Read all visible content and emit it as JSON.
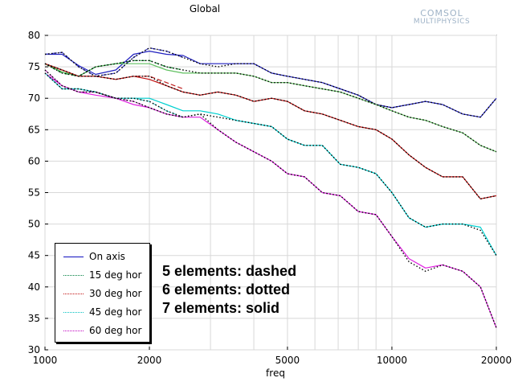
{
  "chart_data": {
    "type": "line",
    "title": "Global",
    "xlabel": "freq",
    "ylabel": "",
    "x_scale": "log",
    "xlim": [
      1000,
      20000
    ],
    "ylim": [
      30,
      80
    ],
    "x_ticks": [
      1000,
      2000,
      5000,
      10000,
      20000
    ],
    "y_ticks": [
      30,
      35,
      40,
      45,
      50,
      55,
      60,
      65,
      70,
      75,
      80
    ],
    "grid": true,
    "legend_position": "bottom-left",
    "legend": [
      {
        "label": "On axis",
        "color": "#1010c0"
      },
      {
        "label": "15 deg hor",
        "color": "#008040"
      },
      {
        "label": "30 deg hor",
        "color": "#c01010"
      },
      {
        "label": "45 deg hor",
        "color": "#00c0c0"
      },
      {
        "label": "60 deg hor",
        "color": "#c000c0"
      }
    ],
    "annotations": [
      "5 elements: dashed",
      "6 elements: dotted",
      "7 elements: solid"
    ],
    "series": [
      {
        "name": "On axis",
        "element_group": "5 elements: dashed",
        "color": "#4040d0",
        "style": "dashed",
        "x": [
          1000,
          1120,
          1250,
          1400,
          1600,
          1800,
          2000,
          2240,
          2500
        ],
        "y": [
          77.0,
          77.3,
          75.0,
          73.5,
          74.0,
          76.5,
          78.0,
          77.5,
          76.5
        ]
      },
      {
        "name": "On axis",
        "element_group": "6 elements: dotted",
        "color": "#000000",
        "style": "dotted",
        "x": [
          1000,
          1120,
          1250,
          1400,
          1600,
          1800,
          2000,
          2240,
          2500,
          2800,
          3150,
          3550,
          4000,
          4500,
          5000,
          5600,
          6300,
          7100,
          8000,
          9000,
          10000,
          11200,
          12500,
          14000,
          16000,
          18000,
          20000
        ],
        "y": [
          77.0,
          77.3,
          75.0,
          73.5,
          74.0,
          76.5,
          78.0,
          77.5,
          76.5,
          75.5,
          75.0,
          75.5,
          75.5,
          74.0,
          73.5,
          73.0,
          72.5,
          71.5,
          70.5,
          69.0,
          68.5,
          69.0,
          69.5,
          69.0,
          67.5,
          67.0,
          70.0
        ]
      },
      {
        "name": "On axis",
        "element_group": "7 elements: solid",
        "color": "#2020c0",
        "style": "solid",
        "x": [
          1000,
          1120,
          1250,
          1400,
          1600,
          1800,
          2000,
          2240,
          2500,
          2800,
          3150,
          3550,
          4000,
          4500,
          5000,
          5600,
          6300,
          7100,
          8000,
          9000,
          10000,
          11200,
          12500,
          14000,
          16000,
          18000,
          20000
        ],
        "y": [
          77.0,
          77.0,
          75.2,
          73.8,
          74.5,
          77.0,
          77.5,
          77.0,
          76.8,
          75.5,
          75.5,
          75.5,
          75.5,
          74.0,
          73.5,
          73.0,
          72.5,
          71.5,
          70.5,
          69.0,
          68.5,
          69.0,
          69.5,
          69.0,
          67.5,
          67.0,
          70.0
        ]
      },
      {
        "name": "15 deg hor",
        "element_group": "5 elements: dashed",
        "color": "#20a040",
        "style": "dashed",
        "x": [
          1000,
          1120,
          1250,
          1400,
          1600,
          1800,
          2000,
          2240,
          2500
        ],
        "y": [
          75.5,
          74.0,
          73.5,
          75.0,
          75.5,
          76.0,
          76.0,
          75.0,
          74.5
        ]
      },
      {
        "name": "15 deg hor",
        "element_group": "6 elements: dotted",
        "color": "#000000",
        "style": "dotted",
        "x": [
          1000,
          1120,
          1250,
          1400,
          1600,
          1800,
          2000,
          2240,
          2500,
          2800,
          3150,
          3550,
          4000,
          4500,
          5000,
          5600,
          6300,
          7100,
          8000,
          9000,
          10000,
          11200,
          12500,
          14000,
          16000,
          18000,
          20000
        ],
        "y": [
          75.5,
          74.0,
          73.5,
          75.0,
          75.5,
          76.0,
          76.0,
          75.0,
          74.5,
          74.0,
          74.0,
          74.0,
          73.5,
          72.5,
          72.5,
          72.0,
          71.5,
          71.0,
          70.0,
          69.0,
          68.0,
          67.0,
          66.5,
          65.5,
          64.5,
          62.5,
          61.5
        ]
      },
      {
        "name": "15 deg hor",
        "element_group": "7 elements: solid",
        "color": "#60c060",
        "style": "solid",
        "x": [
          1000,
          1120,
          1250,
          1400,
          1600,
          1800,
          2000,
          2240,
          2500,
          2800,
          3150,
          3550,
          4000,
          4500,
          5000,
          5600,
          6300,
          7100,
          8000,
          9000,
          10000,
          11200,
          12500,
          14000,
          16000,
          18000,
          20000
        ],
        "y": [
          75.5,
          74.2,
          73.5,
          75.0,
          75.5,
          75.5,
          75.5,
          74.5,
          74.0,
          74.0,
          74.0,
          74.0,
          73.5,
          72.5,
          72.5,
          72.0,
          71.5,
          71.0,
          70.0,
          69.0,
          68.0,
          67.0,
          66.5,
          65.5,
          64.5,
          62.5,
          61.5
        ]
      },
      {
        "name": "30 deg hor",
        "element_group": "5 elements: dashed",
        "color": "#c02020",
        "style": "dashed",
        "x": [
          1000,
          1120,
          1250,
          1400,
          1600,
          1800,
          2000,
          2240,
          2500
        ],
        "y": [
          75.5,
          74.5,
          73.5,
          73.5,
          73.0,
          73.5,
          73.5,
          72.5,
          71.5
        ]
      },
      {
        "name": "30 deg hor",
        "element_group": "6 elements: dotted",
        "color": "#000000",
        "style": "dotted",
        "x": [
          1000,
          1120,
          1250,
          1400,
          1600,
          1800,
          2000,
          2240,
          2500,
          2800,
          3150,
          3550,
          4000,
          4500,
          5000,
          5600,
          6300,
          7100,
          8000,
          9000,
          10000,
          11200,
          12500,
          14000,
          16000,
          18000,
          20000
        ],
        "y": [
          75.5,
          74.5,
          73.5,
          73.5,
          73.0,
          73.5,
          73.5,
          72.0,
          71.0,
          70.5,
          71.0,
          70.5,
          69.5,
          70.0,
          69.5,
          68.0,
          67.5,
          66.5,
          65.5,
          65.0,
          63.5,
          61.0,
          59.0,
          57.5,
          57.5,
          54.0,
          54.5
        ]
      },
      {
        "name": "30 deg hor",
        "element_group": "7 elements: solid",
        "color": "#c01010",
        "style": "solid",
        "x": [
          1000,
          1120,
          1250,
          1400,
          1600,
          1800,
          2000,
          2240,
          2500,
          2800,
          3150,
          3550,
          4000,
          4500,
          5000,
          5600,
          6300,
          7100,
          8000,
          9000,
          10000,
          11200,
          12500,
          14000,
          16000,
          18000,
          20000
        ],
        "y": [
          75.5,
          74.5,
          73.5,
          73.5,
          73.0,
          73.5,
          73.0,
          72.0,
          71.0,
          70.5,
          71.0,
          70.5,
          69.5,
          70.0,
          69.5,
          68.0,
          67.5,
          66.5,
          65.5,
          65.0,
          63.5,
          61.0,
          59.0,
          57.5,
          57.5,
          54.0,
          54.5
        ]
      },
      {
        "name": "45 deg hor",
        "element_group": "5 elements: dashed",
        "color": "#40d0d0",
        "style": "dashed",
        "x": [
          1000,
          1120,
          1250,
          1400,
          1600,
          1800,
          2000,
          2240,
          2500
        ],
        "y": [
          74.0,
          71.5,
          71.5,
          71.0,
          70.0,
          70.0,
          69.5,
          68.0,
          67.0
        ]
      },
      {
        "name": "45 deg hor",
        "element_group": "6 elements: dotted",
        "color": "#000000",
        "style": "dotted",
        "x": [
          1000,
          1120,
          1250,
          1400,
          1600,
          1800,
          2000,
          2240,
          2500,
          2800,
          3150,
          3550,
          4000,
          4500,
          5000,
          5600,
          6300,
          7100,
          8000,
          9000,
          10000,
          11200,
          12500,
          14000,
          16000,
          18000,
          20000
        ],
        "y": [
          74.0,
          71.5,
          71.5,
          71.0,
          70.0,
          70.0,
          69.5,
          68.0,
          67.0,
          67.5,
          67.0,
          66.5,
          66.0,
          65.5,
          63.5,
          62.5,
          62.5,
          59.5,
          59.0,
          58.0,
          55.0,
          51.0,
          49.5,
          50.0,
          50.0,
          49.0,
          45.0
        ]
      },
      {
        "name": "45 deg hor",
        "element_group": "7 elements: solid",
        "color": "#00d0d0",
        "style": "solid",
        "x": [
          1000,
          1120,
          1250,
          1400,
          1600,
          1800,
          2000,
          2240,
          2500,
          2800,
          3150,
          3550,
          4000,
          4500,
          5000,
          5600,
          6300,
          7100,
          8000,
          9000,
          10000,
          11200,
          12500,
          14000,
          16000,
          18000,
          20000
        ],
        "y": [
          74.0,
          71.5,
          71.5,
          71.0,
          70.0,
          70.0,
          70.0,
          69.0,
          68.0,
          68.0,
          67.5,
          66.5,
          66.0,
          65.5,
          63.5,
          62.5,
          62.5,
          59.5,
          59.0,
          58.0,
          55.0,
          51.0,
          49.5,
          50.0,
          50.0,
          49.5,
          45.0
        ]
      },
      {
        "name": "60 deg hor",
        "element_group": "5 elements: dashed",
        "color": "#c040c0",
        "style": "dashed",
        "x": [
          1000,
          1120,
          1250,
          1400,
          1600,
          1800,
          2000,
          2240,
          2500
        ],
        "y": [
          74.5,
          72.0,
          71.0,
          71.0,
          70.0,
          69.5,
          68.5,
          67.5,
          67.0
        ]
      },
      {
        "name": "60 deg hor",
        "element_group": "6 elements: dotted",
        "color": "#000000",
        "style": "dotted",
        "x": [
          1000,
          1120,
          1250,
          1400,
          1600,
          1800,
          2000,
          2240,
          2500,
          2800,
          3150,
          3550,
          4000,
          4500,
          5000,
          5600,
          6300,
          7100,
          8000,
          9000,
          10000,
          11200,
          12500,
          14000,
          16000,
          18000,
          20000
        ],
        "y": [
          74.5,
          72.0,
          71.0,
          71.0,
          70.0,
          69.5,
          68.5,
          67.5,
          67.0,
          67.5,
          65.0,
          63.0,
          61.5,
          60.0,
          58.0,
          57.5,
          55.0,
          54.5,
          52.0,
          51.5,
          48.0,
          44.0,
          42.5,
          43.5,
          42.5,
          40.0,
          33.5
        ]
      },
      {
        "name": "60 deg hor",
        "element_group": "7 elements: solid",
        "color": "#e020e0",
        "style": "solid",
        "x": [
          1000,
          1120,
          1250,
          1400,
          1600,
          1800,
          2000,
          2240,
          2500,
          2800,
          3150,
          3550,
          4000,
          4500,
          5000,
          5600,
          6300,
          7100,
          8000,
          9000,
          10000,
          11200,
          12500,
          14000,
          16000,
          18000,
          20000
        ],
        "y": [
          74.0,
          72.0,
          71.0,
          70.5,
          70.0,
          69.0,
          68.5,
          67.5,
          67.0,
          67.0,
          65.0,
          63.0,
          61.5,
          60.0,
          58.0,
          57.5,
          55.0,
          54.5,
          52.0,
          51.5,
          48.0,
          44.5,
          43.0,
          43.5,
          42.5,
          40.0,
          33.5
        ]
      }
    ]
  },
  "branding": {
    "logo_line1": "COMSOL",
    "logo_line2": "MULTIPHYSICS"
  }
}
